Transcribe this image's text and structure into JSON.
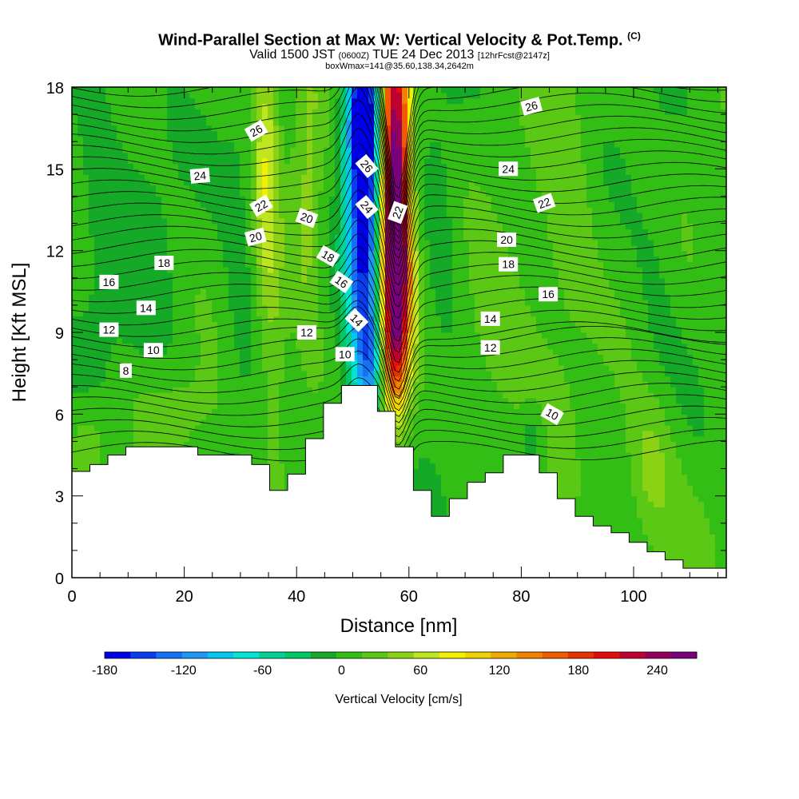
{
  "title": {
    "main": "Wind-Parallel Section at Max W: Vertical Velocity & Pot.Temp.",
    "copyright": "(C)",
    "valid_a": "Valid 1500 JST",
    "valid_z": "(0600Z)",
    "valid_b": "TUE 24 Dec 2013",
    "fcst": "[12hrFcst@2147z]",
    "box": "boxWmax=141@35.60,138.34,2642m"
  },
  "chart_data": {
    "type": "heatmap",
    "xlabel": "Distance [nm]",
    "ylabel": "Height [Kft MSL]",
    "xlim": [
      0,
      116.5
    ],
    "ylim": [
      0,
      18
    ],
    "x_ticks": [
      "0",
      "20",
      "40",
      "60",
      "80",
      "100"
    ],
    "y_ticks": [
      "0",
      "3",
      "6",
      "9",
      "12",
      "15",
      "18"
    ],
    "colorbar": {
      "label": "Vertical Velocity [cm/s]",
      "min": -180,
      "max": 270,
      "step": 20,
      "tick_labels": [
        "-180",
        "-120",
        "-60",
        "0",
        "60",
        "120",
        "180",
        "240"
      ],
      "tick_values": [
        -180,
        -120,
        -60,
        0,
        60,
        120,
        180,
        240
      ],
      "colors": [
        "#0000e6",
        "#0a3cf0",
        "#1470f5",
        "#1e96f5",
        "#00c8f0",
        "#00e6d2",
        "#00d296",
        "#00c864",
        "#14aa28",
        "#32be14",
        "#5ac814",
        "#8cd214",
        "#bee61e",
        "#f0f000",
        "#f0d200",
        "#f0aa00",
        "#f08200",
        "#f05a00",
        "#e63200",
        "#e60a0a",
        "#be0032",
        "#96005a",
        "#780078"
      ]
    },
    "terrain": [
      [
        0,
        3.9
      ],
      [
        3.2,
        3.9
      ],
      [
        3.2,
        4.15
      ],
      [
        6.4,
        4.15
      ],
      [
        6.4,
        4.5
      ],
      [
        9.6,
        4.5
      ],
      [
        9.6,
        4.8
      ],
      [
        22.4,
        4.8
      ],
      [
        22.4,
        4.5
      ],
      [
        32,
        4.5
      ],
      [
        32,
        4.15
      ],
      [
        35.2,
        4.15
      ],
      [
        35.2,
        3.2
      ],
      [
        38.4,
        3.2
      ],
      [
        38.4,
        3.8
      ],
      [
        41.6,
        3.8
      ],
      [
        41.6,
        5.1
      ],
      [
        44.8,
        5.1
      ],
      [
        44.8,
        6.4
      ],
      [
        48,
        6.4
      ],
      [
        48,
        7.05
      ],
      [
        54.4,
        7.05
      ],
      [
        54.4,
        6.1
      ],
      [
        57.6,
        6.1
      ],
      [
        57.6,
        4.8
      ],
      [
        60.8,
        4.8
      ],
      [
        60.8,
        3.2
      ],
      [
        64,
        3.2
      ],
      [
        64,
        2.25
      ],
      [
        67.2,
        2.25
      ],
      [
        67.2,
        2.9
      ],
      [
        70.4,
        2.9
      ],
      [
        70.4,
        3.5
      ],
      [
        73.6,
        3.5
      ],
      [
        73.6,
        3.85
      ],
      [
        76.8,
        3.85
      ],
      [
        76.8,
        4.5
      ],
      [
        80,
        4.5
      ],
      [
        80,
        4.5
      ],
      [
        83.2,
        4.5
      ],
      [
        83.2,
        3.85
      ],
      [
        86.4,
        3.85
      ],
      [
        86.4,
        2.9
      ],
      [
        89.6,
        2.9
      ],
      [
        89.6,
        2.25
      ],
      [
        92.8,
        2.25
      ],
      [
        92.8,
        1.9
      ],
      [
        96,
        1.9
      ],
      [
        96,
        1.65
      ],
      [
        99.2,
        1.65
      ],
      [
        99.2,
        1.3
      ],
      [
        102.4,
        1.3
      ],
      [
        102.4,
        0.95
      ],
      [
        105.6,
        0.95
      ],
      [
        105.6,
        0.65
      ],
      [
        108.8,
        0.65
      ],
      [
        108.8,
        0.35
      ],
      [
        116.5,
        0.35
      ]
    ],
    "velocity_blobs": [
      {
        "x": 57.5,
        "y": 15.5,
        "sx": 1.8,
        "sy": 4.5,
        "amp": 265
      },
      {
        "x": 57.8,
        "y": 11.0,
        "sx": 2.0,
        "sy": 2.5,
        "amp": 150
      },
      {
        "x": 57.3,
        "y": 8.0,
        "sx": 1.8,
        "sy": 1.6,
        "amp": 80
      },
      {
        "x": 52.0,
        "y": 13.5,
        "sx": 2.2,
        "sy": 5.5,
        "amp": -185
      },
      {
        "x": 51.5,
        "y": 17.0,
        "sx": 2.0,
        "sy": 2.0,
        "amp": -90
      },
      {
        "x": 53.5,
        "y": 8.0,
        "sx": 1.4,
        "sy": 1.2,
        "amp": -60
      },
      {
        "x": 34.5,
        "y": 15.5,
        "sx": 1.6,
        "sy": 4.5,
        "amp": 65
      },
      {
        "x": 36.5,
        "y": 8.0,
        "sx": 1.6,
        "sy": 3.0,
        "amp": 25
      },
      {
        "x": 42.0,
        "y": 14.0,
        "sx": 1.8,
        "sy": 5.0,
        "amp": 35
      },
      {
        "x": 13.0,
        "y": 12.0,
        "sx": 4.5,
        "sy": 6.0,
        "amp": -15
      },
      {
        "x": 5.0,
        "y": 14.0,
        "sx": 3.0,
        "sy": 5.0,
        "amp": -18
      },
      {
        "x": 30.0,
        "y": 11.0,
        "sx": 2.5,
        "sy": 6.5,
        "amp": -18
      },
      {
        "x": 19.0,
        "y": 6.0,
        "sx": 6.0,
        "sy": 1.2,
        "amp": 22
      },
      {
        "x": 3.0,
        "y": 5.0,
        "sx": 2.5,
        "sy": 1.2,
        "amp": 28
      },
      {
        "x": 76.0,
        "y": 8.5,
        "sx": 5.0,
        "sy": 2.5,
        "amp": 25
      },
      {
        "x": 88.0,
        "y": 13.5,
        "sx": 3.5,
        "sy": 4.5,
        "amp": 25
      },
      {
        "x": 103.0,
        "y": 4.0,
        "sx": 3.0,
        "sy": 2.0,
        "amp": 42
      },
      {
        "x": 104.0,
        "y": 11.0,
        "sx": 3.0,
        "sy": 5.0,
        "amp": -12
      },
      {
        "x": 66.0,
        "y": 12.0,
        "sx": 2.5,
        "sy": 5.0,
        "amp": -18
      },
      {
        "x": 47.5,
        "y": 5.2,
        "sx": 1.2,
        "sy": 0.8,
        "amp": -28
      },
      {
        "x": 82.0,
        "y": 5.0,
        "sx": 1.5,
        "sy": 1.0,
        "amp": -30
      },
      {
        "x": 109.0,
        "y": 2.0,
        "sx": 4.0,
        "sy": 1.5,
        "amp": 10
      }
    ],
    "theta_labels": [
      {
        "text": "26",
        "x": 32.8,
        "y": 16.4,
        "rot": -30
      },
      {
        "text": "24",
        "x": 22.8,
        "y": 14.75,
        "rot": -5
      },
      {
        "text": "22",
        "x": 33.7,
        "y": 13.65,
        "rot": -30
      },
      {
        "text": "20",
        "x": 32.7,
        "y": 12.5,
        "rot": -15
      },
      {
        "text": "20",
        "x": 41.8,
        "y": 13.2,
        "rot": 20
      },
      {
        "text": "18",
        "x": 16.4,
        "y": 11.55,
        "rot": 0
      },
      {
        "text": "18",
        "x": 45.6,
        "y": 11.8,
        "rot": 30
      },
      {
        "text": "16",
        "x": 6.6,
        "y": 10.85,
        "rot": 0
      },
      {
        "text": "16",
        "x": 48.0,
        "y": 10.85,
        "rot": 35
      },
      {
        "text": "14",
        "x": 13.2,
        "y": 9.9,
        "rot": 0
      },
      {
        "text": "14",
        "x": 50.7,
        "y": 9.45,
        "rot": 45
      },
      {
        "text": "12",
        "x": 6.6,
        "y": 9.1,
        "rot": 0
      },
      {
        "text": "12",
        "x": 41.8,
        "y": 9.0,
        "rot": 0
      },
      {
        "text": "10",
        "x": 14.5,
        "y": 8.35,
        "rot": 0
      },
      {
        "text": "10",
        "x": 48.6,
        "y": 8.2,
        "rot": 0
      },
      {
        "text": "8",
        "x": 9.6,
        "y": 7.6,
        "rot": 0
      },
      {
        "text": "26",
        "x": 52.5,
        "y": 15.1,
        "rot": 50
      },
      {
        "text": "24",
        "x": 52.5,
        "y": 13.6,
        "rot": 50
      },
      {
        "text": "22",
        "x": 58.0,
        "y": 13.4,
        "rot": -70
      },
      {
        "text": "26",
        "x": 81.8,
        "y": 17.3,
        "rot": -15
      },
      {
        "text": "24",
        "x": 77.7,
        "y": 15.0,
        "rot": 0
      },
      {
        "text": "22",
        "x": 84.1,
        "y": 13.75,
        "rot": -20
      },
      {
        "text": "20",
        "x": 77.4,
        "y": 12.4,
        "rot": 0
      },
      {
        "text": "18",
        "x": 77.7,
        "y": 11.5,
        "rot": 0
      },
      {
        "text": "16",
        "x": 84.8,
        "y": 10.4,
        "rot": 0
      },
      {
        "text": "14",
        "x": 74.5,
        "y": 9.5,
        "rot": 0
      },
      {
        "text": "12",
        "x": 74.5,
        "y": 8.45,
        "rot": 0
      },
      {
        "text": "10",
        "x": 85.5,
        "y": 6.0,
        "rot": 30
      }
    ]
  }
}
